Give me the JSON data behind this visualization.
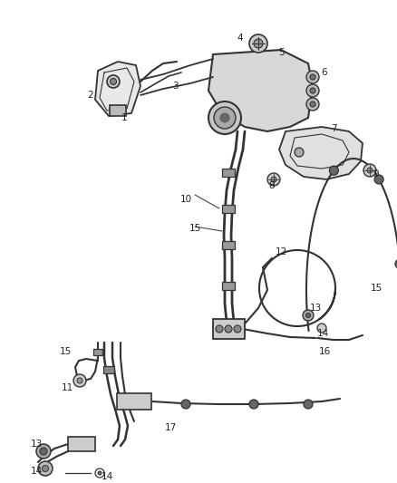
{
  "background_color": "#ffffff",
  "line_color": "#333333",
  "label_color": "#222222",
  "label_fontsize": 7.5,
  "fig_width": 4.38,
  "fig_height": 5.33,
  "dpi": 100
}
